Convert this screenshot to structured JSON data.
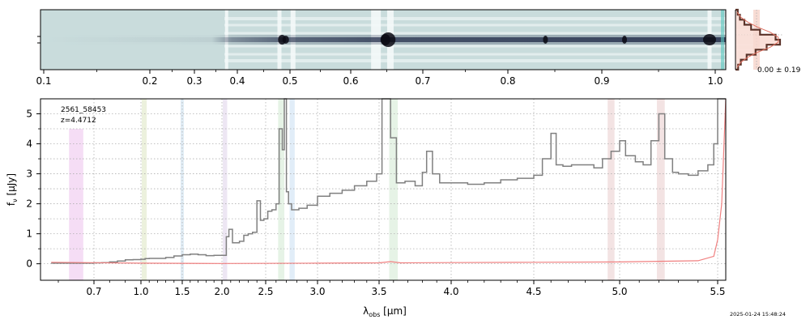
{
  "chart_data": [
    {
      "type": "heatmap",
      "panel": "2d-spectrum",
      "x_ticks": [
        "0.1",
        "0.2",
        "0.3",
        "0.4",
        "0.5",
        "0.6",
        "0.7",
        "0.8",
        "0.9",
        "1.0"
      ],
      "x_tick_values": [
        0.1,
        0.2,
        0.3,
        0.4,
        0.5,
        0.6,
        0.7,
        0.8,
        0.9,
        1.0
      ],
      "xlim": [
        0.095,
        1.005
      ],
      "colormap": [
        "#c8dcdc",
        "#1e2846"
      ]
    },
    {
      "type": "line",
      "panel": "1d-spectrum",
      "object_id": "2561_58453",
      "redshift_label": "z=4.4712",
      "xlabel": "λobs [μm]",
      "ylabel": "fν [μJy]",
      "x_ticks": [
        "0.7",
        "1.0",
        "1.5",
        "2.0",
        "2.5",
        "3.0",
        "3.5",
        "4.0",
        "4.5",
        "5.0",
        "5.5"
      ],
      "x_tick_values": [
        0.7,
        1.0,
        1.5,
        2.0,
        2.5,
        3.0,
        3.5,
        4.0,
        4.5,
        5.0,
        5.5
      ],
      "y_ticks": [
        "0",
        "1",
        "2",
        "3",
        "4",
        "5"
      ],
      "y_tick_values": [
        0,
        1,
        2,
        3,
        4,
        5
      ],
      "xlim": [
        0.55,
        5.52
      ],
      "ylim": [
        -0.55,
        5.5
      ],
      "grid": true,
      "series": [
        {
          "color": "#808080",
          "style": "step",
          "x": [
            0.58,
            0.65,
            0.7,
            0.75,
            0.8,
            0.85,
            0.9,
            0.95,
            1.0,
            1.05,
            1.1,
            1.2,
            1.3,
            1.4,
            1.5,
            1.6,
            1.7,
            1.8,
            1.9,
            2.0,
            2.05,
            2.08,
            2.12,
            2.2,
            2.25,
            2.3,
            2.35,
            2.4,
            2.44,
            2.48,
            2.52,
            2.56,
            2.6,
            2.63,
            2.66,
            2.68,
            2.7,
            2.72,
            2.75,
            2.78,
            2.82,
            2.9,
            3.0,
            3.1,
            3.2,
            3.3,
            3.4,
            3.48,
            3.52,
            3.56,
            3.58,
            3.62,
            3.68,
            3.75,
            3.8,
            3.83,
            3.87,
            3.92,
            4.0,
            4.1,
            4.2,
            4.3,
            4.4,
            4.5,
            4.55,
            4.6,
            4.63,
            4.67,
            4.72,
            4.8,
            4.85,
            4.9,
            4.95,
            5.0,
            5.03,
            5.08,
            5.12,
            5.16,
            5.2,
            5.23,
            5.27,
            5.3,
            5.35,
            5.4,
            5.45,
            5.48,
            5.5,
            5.52
          ],
          "y": [
            0.02,
            0.02,
            0.03,
            0.04,
            0.06,
            0.09,
            0.13,
            0.14,
            0.15,
            0.17,
            0.18,
            0.18,
            0.21,
            0.26,
            0.3,
            0.32,
            0.3,
            0.27,
            0.28,
            0.28,
            0.9,
            1.15,
            0.7,
            0.75,
            0.95,
            1.0,
            1.05,
            2.1,
            1.45,
            1.5,
            1.75,
            1.8,
            2.0,
            4.5,
            3.8,
            5.5,
            2.4,
            2.0,
            1.8,
            1.8,
            1.85,
            1.95,
            2.25,
            2.35,
            2.45,
            2.6,
            2.75,
            3.0,
            5.5,
            5.5,
            4.2,
            2.7,
            2.75,
            2.6,
            3.05,
            3.75,
            3.0,
            2.7,
            2.7,
            2.65,
            2.7,
            2.8,
            2.85,
            2.95,
            3.5,
            4.35,
            3.3,
            3.25,
            3.3,
            3.3,
            3.2,
            3.5,
            3.75,
            4.1,
            3.6,
            3.4,
            3.3,
            4.1,
            5.0,
            3.5,
            3.05,
            3.0,
            2.95,
            3.1,
            3.3,
            4.0,
            5.5,
            5.5
          ]
        },
        {
          "color": "#f08080",
          "style": "line",
          "x": [
            0.58,
            1.0,
            2.0,
            3.0,
            3.5,
            3.58,
            3.65,
            4.0,
            4.5,
            5.0,
            5.4,
            5.48,
            5.5,
            5.51,
            5.52
          ],
          "y": [
            0.05,
            0.02,
            0.01,
            0.02,
            0.03,
            0.07,
            0.03,
            0.04,
            0.05,
            0.06,
            0.1,
            0.25,
            0.8,
            2.0,
            5.5
          ]
        }
      ],
      "line_bands": [
        {
          "x0": 0.63,
          "x1": 0.67,
          "ymax": 4.5,
          "color": "#e8b4e8"
        },
        {
          "x0": 1.01,
          "x1": 1.07,
          "ymax": 5.5,
          "color": "#d4e0b4"
        },
        {
          "x0": 1.48,
          "x1": 1.52,
          "ymax": 5.5,
          "color": "#bcd8ec"
        },
        {
          "x0": 2.01,
          "x1": 2.06,
          "ymax": 5.5,
          "color": "#d8c8e4"
        },
        {
          "x0": 2.62,
          "x1": 2.68,
          "ymax": 5.5,
          "color": "#c8e4c8"
        },
        {
          "x0": 2.73,
          "x1": 2.78,
          "ymax": 5.5,
          "color": "#bcd8f0"
        },
        {
          "x0": 3.57,
          "x1": 3.63,
          "ymax": 5.5,
          "color": "#c8e4c8"
        },
        {
          "x0": 4.93,
          "x1": 4.97,
          "ymax": 5.5,
          "color": "#e4c0c0"
        },
        {
          "x0": 5.19,
          "x1": 5.23,
          "ymax": 5.5,
          "color": "#e4c0c0"
        }
      ]
    },
    {
      "type": "bar",
      "panel": "residual-histogram",
      "annotation": "0.00 ± 0.19",
      "values": [
        0.05,
        0.1,
        0.2,
        0.35,
        0.55,
        0.9,
        1.0,
        0.7,
        0.45,
        0.25,
        0.12,
        0.06
      ],
      "gaussian": [
        0.04,
        0.12,
        0.28,
        0.5,
        0.78,
        0.96,
        0.96,
        0.78,
        0.5,
        0.28,
        0.12,
        0.04
      ]
    }
  ],
  "footer": {
    "timestamp": "2025-01-24 15:48:24"
  },
  "colors": {
    "spectrum": "#808080",
    "error": "#f08080",
    "grid": "#b0b0b0",
    "hist_fill": "#f8d8d0",
    "hist_edge": "#5a3228"
  }
}
